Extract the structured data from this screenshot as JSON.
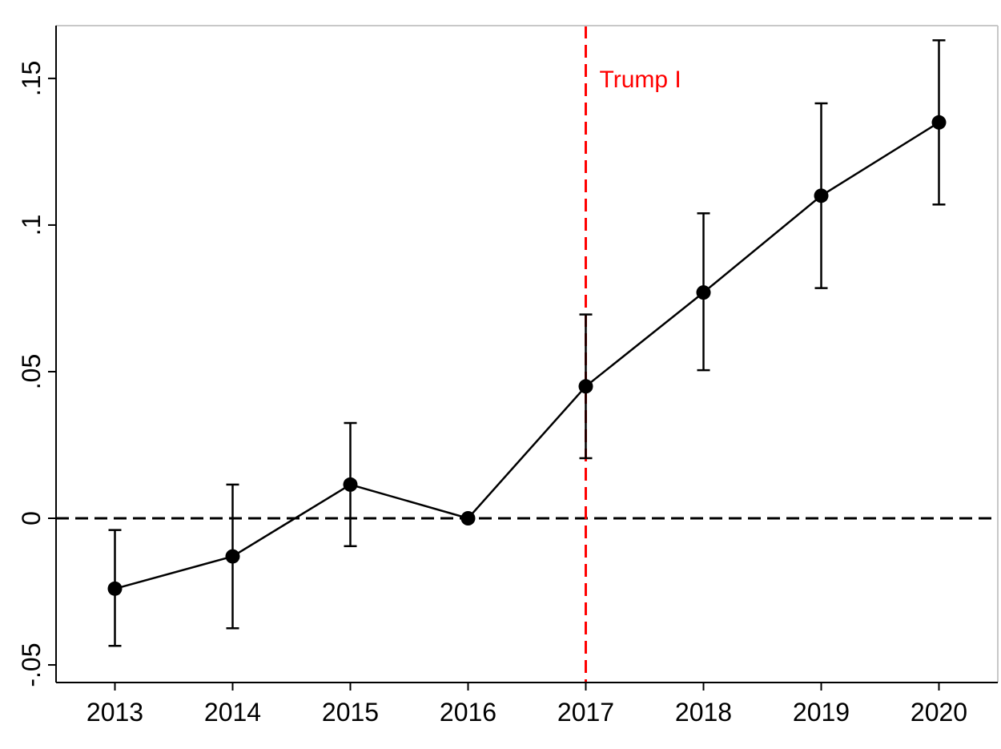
{
  "chart_data": {
    "type": "line",
    "title": "",
    "xlabel": "",
    "ylabel": "",
    "x": [
      2013,
      2014,
      2015,
      2016,
      2017,
      2018,
      2019,
      2020
    ],
    "xlim": [
      2012.5,
      2020.5
    ],
    "ylim": [
      -0.056,
      0.168
    ],
    "x_tick_labels": [
      "2013",
      "2014",
      "2015",
      "2016",
      "2017",
      "2018",
      "2019",
      "2020"
    ],
    "y_ticks": [
      -0.05,
      0,
      0.05,
      0.1,
      0.15
    ],
    "y_tick_labels": [
      "-.05",
      "0",
      ".05",
      ".1",
      ".15"
    ],
    "grid": false,
    "series": [
      {
        "values": [
          -0.024,
          -0.013,
          0.0115,
          0.0,
          0.045,
          0.077,
          0.11,
          0.135
        ],
        "ci_lower": [
          -0.0435,
          -0.0375,
          -0.0095,
          0.0,
          0.0205,
          0.0505,
          0.0785,
          0.107
        ],
        "ci_upper": [
          -0.004,
          0.0115,
          0.0325,
          0.0,
          0.0695,
          0.104,
          0.1415,
          0.163
        ],
        "color": "#000000",
        "marker": "circle"
      }
    ],
    "reference_lines": [
      {
        "axis": "y",
        "value": 0,
        "color": "#000000",
        "style": "dashed"
      },
      {
        "axis": "x",
        "value": 2017,
        "color": "#ff0000",
        "style": "dashed"
      }
    ],
    "annotations": [
      {
        "text": "Trump I",
        "x": 2017,
        "y": 0.15,
        "color": "#ff0000"
      }
    ]
  }
}
